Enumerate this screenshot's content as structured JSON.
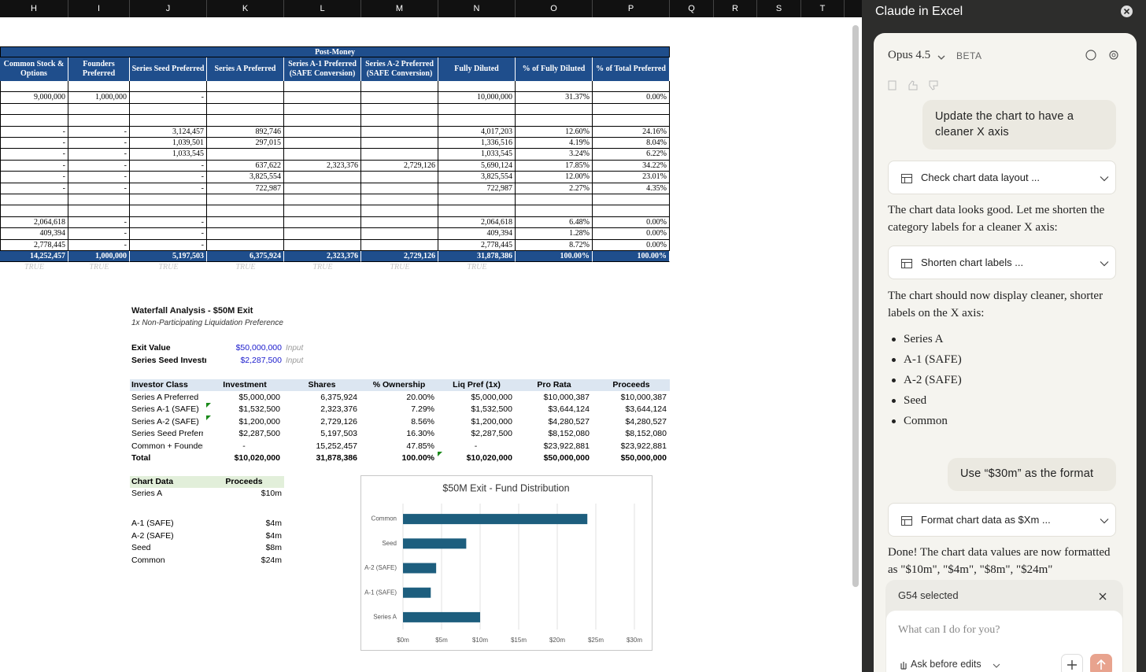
{
  "column_headers": [
    "H",
    "I",
    "J",
    "K",
    "L",
    "M",
    "N",
    "O",
    "P",
    "Q",
    "R",
    "S",
    "T"
  ],
  "cap_table": {
    "group_header": "Post-Money",
    "headers": [
      "Common Stock & Options",
      "Founders Preferred",
      "Series Seed Preferred",
      "Series A Preferred",
      "Series A-1 Preferred (SAFE Conversion)",
      "Series A-2 Preferred (SAFE Conversion)",
      "Fully Diluted",
      "% of Fully Diluted",
      "% of Total Preferred"
    ],
    "rows": [
      null,
      [
        "9,000,000",
        "1,000,000",
        "-",
        null,
        null,
        null,
        "10,000,000",
        "31.37%",
        "0.00%"
      ],
      null,
      null,
      [
        "-",
        "-",
        "3,124,457",
        "892,746",
        null,
        null,
        "4,017,203",
        "12.60%",
        "24.16%"
      ],
      [
        "-",
        "-",
        "1,039,501",
        "297,015",
        null,
        null,
        "1,336,516",
        "4.19%",
        "8.04%"
      ],
      [
        "-",
        "-",
        "1,033,545",
        null,
        null,
        null,
        "1,033,545",
        "3.24%",
        "6.22%"
      ],
      [
        "-",
        "-",
        "-",
        "637,622",
        "2,323,376",
        "2,729,126",
        "5,690,124",
        "17.85%",
        "34.22%"
      ],
      [
        "-",
        "-",
        "-",
        "3,825,554",
        null,
        null,
        "3,825,554",
        "12.00%",
        "23.01%"
      ],
      [
        "-",
        "-",
        "-",
        "722,987",
        null,
        null,
        "722,987",
        "2.27%",
        "4.35%"
      ],
      null,
      null,
      [
        "2,064,618",
        "-",
        "-",
        null,
        null,
        null,
        "2,064,618",
        "6.48%",
        "0.00%"
      ],
      [
        "409,394",
        "-",
        "-",
        null,
        null,
        null,
        "409,394",
        "1.28%",
        "0.00%"
      ],
      [
        "2,778,445",
        "-",
        "-",
        null,
        null,
        null,
        "2,778,445",
        "8.72%",
        "0.00%"
      ]
    ],
    "total": [
      "14,252,457",
      "1,000,000",
      "5,197,503",
      "6,375,924",
      "2,323,376",
      "2,729,126",
      "31,878,386",
      "100.00%",
      "100.00%"
    ],
    "checks": [
      "TRUE",
      "TRUE",
      "TRUE",
      "TRUE",
      "TRUE",
      "TRUE",
      "TRUE"
    ]
  },
  "waterfall": {
    "title": "Waterfall Analysis - $50M Exit",
    "subtitle": "1x Non-Participating Liquidation Preference",
    "inputs": [
      {
        "label": "Exit Value",
        "value": "$50,000,000",
        "note": "Input"
      },
      {
        "label": "Series Seed Investn",
        "value": "$2,287,500",
        "note": "Input"
      }
    ],
    "headers": [
      "Investor Class",
      "Investment",
      "Shares",
      "% Ownership",
      "Liq Pref (1x)",
      "Pro Rata",
      "Proceeds"
    ],
    "rows": [
      [
        "Series A Preferred",
        "$5,000,000",
        "6,375,924",
        "20.00%",
        "$5,000,000",
        "$10,000,387",
        "$10,000,387"
      ],
      [
        "Series A-1 (SAFE)",
        "$1,532,500",
        "2,323,376",
        "7.29%",
        "$1,532,500",
        "$3,644,124",
        "$3,644,124"
      ],
      [
        "Series A-2 (SAFE)",
        "$1,200,000",
        "2,729,126",
        "8.56%",
        "$1,200,000",
        "$4,280,527",
        "$4,280,527"
      ],
      [
        "Series Seed Preferred",
        "$2,287,500",
        "5,197,503",
        "16.30%",
        "$2,287,500",
        "$8,152,080",
        "$8,152,080"
      ],
      [
        "Common + Founders",
        "-",
        "15,252,457",
        "47.85%",
        "-",
        "$23,922,881",
        "$23,922,881"
      ]
    ],
    "total": [
      "Total",
      "$10,020,000",
      "31,878,386",
      "100.00%",
      "$10,020,000",
      "$50,000,000",
      "$50,000,000"
    ]
  },
  "chart_table": {
    "headers": [
      "Chart Data",
      "Proceeds"
    ],
    "rows": [
      [
        "Series A",
        "$10m"
      ],
      null,
      [
        "A-1 (SAFE)",
        "$4m"
      ],
      [
        "A-2 (SAFE)",
        "$4m"
      ],
      [
        "Seed",
        "$8m"
      ],
      [
        "Common",
        "$24m"
      ]
    ]
  },
  "chart_data": {
    "type": "bar",
    "orientation": "horizontal",
    "title": "$50M Exit - Fund Distribution",
    "categories": [
      "Series A",
      "A-1 (SAFE)",
      "A-2 (SAFE)",
      "Seed",
      "Common"
    ],
    "values": [
      10.0,
      3.6,
      4.3,
      8.2,
      23.9
    ],
    "color": "#1d5e7e",
    "xlim": [
      0,
      30
    ],
    "xticks": [
      {
        "value": 0,
        "label": "$0m"
      },
      {
        "value": 5,
        "label": "$5m"
      },
      {
        "value": 10,
        "label": "$10m"
      },
      {
        "value": 15,
        "label": "$15m"
      },
      {
        "value": 20,
        "label": "$20m"
      },
      {
        "value": 25,
        "label": "$25m"
      },
      {
        "value": 30,
        "label": "$30m"
      }
    ],
    "grid": true
  },
  "sidebar": {
    "title": "Claude in Excel",
    "model": "Opus 4.5",
    "badge": "BETA",
    "messages": [
      {
        "role": "user",
        "text": "Update the chart to have a cleaner X axis"
      },
      {
        "role": "tool",
        "text": "Check chart data layout ..."
      },
      {
        "role": "assistant",
        "text": "The chart data looks good. Let me shorten the category labels for a cleaner X axis:"
      },
      {
        "role": "tool",
        "text": "Shorten chart labels ..."
      },
      {
        "role": "assistant",
        "text": "The chart should now display cleaner, shorter labels on the X axis:",
        "bullets": [
          "Series A",
          "A-1 (SAFE)",
          "A-2 (SAFE)",
          "Seed",
          "Common"
        ]
      },
      {
        "role": "user",
        "text": "Use “$30m” as the format"
      },
      {
        "role": "tool",
        "text": "Format chart data as $Xm ..."
      },
      {
        "role": "assistant",
        "text": "Done! The chart data values are now formatted as \"$10m\", \"$4m\", \"$8m\", \"$24m\""
      }
    ],
    "selection": "G54 selected",
    "placeholder": "What can I do for you?",
    "mode": "Ask before edits"
  }
}
